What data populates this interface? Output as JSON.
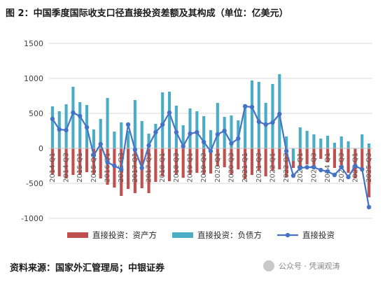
{
  "title": "图 2：中国季度国际收支口径直接投资差额及其构成（单位：亿美元）",
  "source": "资料来源：国家外汇管理局；中银证券",
  "watermark": "公众号 · 凭澜观涛",
  "chart_data": {
    "type": "bar",
    "ylim": [
      -1000,
      1500
    ],
    "yticks": [
      -1000,
      -500,
      0,
      500,
      1000,
      1500
    ],
    "grid": true,
    "legend_position": "bottom",
    "categories": [
      "2014Q1",
      "2014Q2",
      "2014Q3",
      "2014Q4",
      "2015Q1",
      "2015Q2",
      "2015Q3",
      "2015Q4",
      "2016Q1",
      "2016Q2",
      "2016Q3",
      "2016Q4",
      "2017Q1",
      "2017Q2",
      "2017Q3",
      "2017Q4",
      "2018Q1",
      "2018Q2",
      "2018Q3",
      "2018Q4",
      "2019Q1",
      "2019Q2",
      "2019Q3",
      "2019Q4",
      "2020Q1",
      "2020Q2",
      "2020Q3",
      "2020Q4",
      "2021Q1",
      "2021Q2",
      "2021Q3",
      "2021Q4",
      "2022Q1",
      "2022Q2",
      "2022Q3",
      "2022Q4",
      "2023Q1",
      "2023Q2",
      "2023Q3",
      "2023Q4",
      "2024Q1",
      "2024Q2",
      "2024Q3",
      "2024Q4",
      "2025Q1",
      "2025Q2",
      "2025Q3"
    ],
    "tick_labels": [
      {
        "label": "2014 Q1",
        "index": 0
      },
      {
        "label": "2014 Q3",
        "index": 2
      },
      {
        "label": "2015 Q1",
        "index": 4
      },
      {
        "label": "2015 Q3",
        "index": 6
      },
      {
        "label": "2016 Q1",
        "index": 8
      },
      {
        "label": "2016 Q3",
        "index": 10
      },
      {
        "label": "2017 Q1",
        "index": 12
      },
      {
        "label": "2017 Q3",
        "index": 14
      },
      {
        "label": "2018 Q1",
        "index": 16
      },
      {
        "label": "2018 Q3",
        "index": 18
      },
      {
        "label": "2019 Q1",
        "index": 20
      },
      {
        "label": "2019 Q3",
        "index": 22
      },
      {
        "label": "2020 Q1",
        "index": 24
      },
      {
        "label": "2020 Q3",
        "index": 26
      },
      {
        "label": "2021 Q1",
        "index": 28
      },
      {
        "label": "2021 Q3",
        "index": 30
      },
      {
        "label": "2022 Q1",
        "index": 32
      },
      {
        "label": "2022 Q3",
        "index": 34
      },
      {
        "label": "2023 Q1",
        "index": 36
      },
      {
        "label": "2023 Q3",
        "index": 38
      },
      {
        "label": "2024 Q1",
        "index": 40
      },
      {
        "label": "2024 Q3",
        "index": 42
      },
      {
        "label": "2025 Q1",
        "index": 44
      },
      {
        "label": "2025 Q3",
        "index": 46
      }
    ],
    "series": [
      {
        "name": "直接投资：资产方",
        "kind": "bar",
        "color": "#c0504d",
        "values": [
          -370,
          -400,
          -430,
          -380,
          -380,
          -340,
          -370,
          -430,
          -520,
          -560,
          -680,
          -580,
          -640,
          -570,
          -640,
          -480,
          -400,
          -470,
          -380,
          -420,
          -380,
          -350,
          -370,
          -360,
          -260,
          -270,
          -380,
          -300,
          -440,
          -380,
          -320,
          -400,
          -320,
          -300,
          -410,
          -280,
          -270,
          -230,
          -240,
          -150,
          -200,
          -280,
          -300,
          -350,
          -430,
          -330,
          -700
        ]
      },
      {
        "name": "直接投资：负债方",
        "kind": "bar",
        "color": "#4bacc6",
        "values": [
          600,
          530,
          630,
          880,
          660,
          620,
          270,
          420,
          720,
          240,
          370,
          250,
          690,
          390,
          210,
          350,
          800,
          810,
          610,
          330,
          570,
          530,
          460,
          260,
          650,
          450,
          470,
          400,
          630,
          970,
          950,
          650,
          920,
          1060,
          170,
          -180,
          300,
          250,
          200,
          140,
          180,
          80,
          170,
          100,
          -10,
          200,
          70
        ]
      },
      {
        "name": "直接投资",
        "kind": "line",
        "color": "#4472c4",
        "values": [
          420,
          270,
          260,
          510,
          460,
          300,
          -100,
          60,
          -200,
          -250,
          -300,
          340,
          -20,
          -280,
          40,
          230,
          340,
          510,
          230,
          30,
          210,
          230,
          90,
          -40,
          200,
          250,
          70,
          140,
          600,
          590,
          380,
          340,
          370,
          490,
          -40,
          -390,
          -280,
          -270,
          -270,
          -310,
          -330,
          -380,
          -270,
          -410,
          -250,
          -300,
          -840
        ]
      }
    ]
  }
}
